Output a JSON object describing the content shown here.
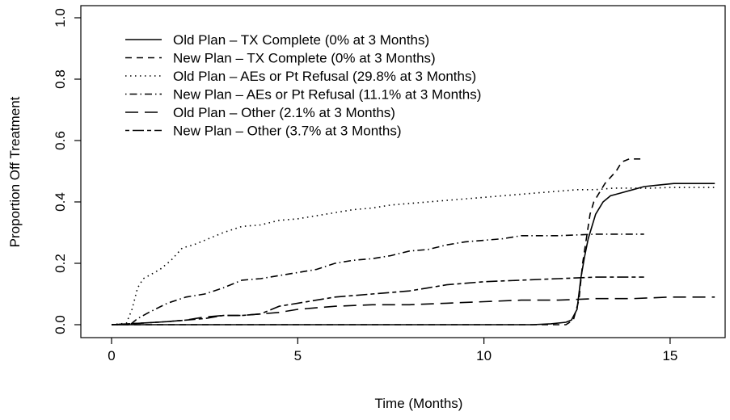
{
  "chart_data": {
    "type": "line",
    "title": "",
    "xlabel": "Time (Months)",
    "ylabel": "Proportion Off Treatment",
    "xlim": [
      0,
      16.2
    ],
    "ylim": [
      0,
      1.0
    ],
    "xticks": [
      0,
      5,
      10,
      15
    ],
    "xtick_labels": [
      "0",
      "5",
      "10",
      "15"
    ],
    "yticks": [
      0.0,
      0.2,
      0.4,
      0.6,
      0.8,
      1.0
    ],
    "ytick_labels": [
      "0.0",
      "0.2",
      "0.4",
      "0.6",
      "0.8",
      "1.0"
    ],
    "grid": false,
    "legend_position": "top-left",
    "series": [
      {
        "name": "Old Plan – TX Complete (0% at 3 Months)",
        "line_style": "solid",
        "color": "#000000",
        "x": [
          0,
          11.3,
          11.8,
          12.2,
          12.35,
          12.5,
          12.6,
          12.7,
          12.8,
          12.9,
          13.0,
          13.2,
          13.4,
          13.7,
          14.0,
          14.3,
          14.7,
          15.1,
          15.5,
          16.2
        ],
        "y": [
          0,
          0,
          0.003,
          0.008,
          0.015,
          0.05,
          0.15,
          0.22,
          0.28,
          0.32,
          0.36,
          0.4,
          0.42,
          0.43,
          0.44,
          0.45,
          0.455,
          0.46,
          0.46,
          0.46
        ]
      },
      {
        "name": "New Plan – TX Complete (0% at 3 Months)",
        "line_style": "dashed",
        "color": "#000000",
        "x": [
          0,
          12.2,
          12.4,
          12.55,
          12.65,
          12.75,
          12.85,
          12.95,
          13.1,
          13.25,
          13.4,
          13.55,
          13.7,
          13.9,
          14.2
        ],
        "y": [
          0,
          0,
          0.015,
          0.08,
          0.2,
          0.28,
          0.36,
          0.4,
          0.43,
          0.46,
          0.48,
          0.5,
          0.53,
          0.54,
          0.54
        ]
      },
      {
        "name": "Old Plan – AEs or Pt Refusal (29.8% at 3 Months)",
        "line_style": "dotted",
        "color": "#000000",
        "x": [
          0,
          0.4,
          0.55,
          0.7,
          0.85,
          1.0,
          1.3,
          1.6,
          1.9,
          2.2,
          2.6,
          3.0,
          3.5,
          4.0,
          4.5,
          5.0,
          5.5,
          6.0,
          6.5,
          7.0,
          7.5,
          8.0,
          8.5,
          9.0,
          9.5,
          10.0,
          10.5,
          11.0,
          11.5,
          12.0,
          12.5,
          13.0,
          13.5,
          14.0,
          14.5,
          15.0,
          15.5,
          16.2
        ],
        "y": [
          0,
          0.005,
          0.05,
          0.12,
          0.15,
          0.16,
          0.18,
          0.21,
          0.25,
          0.26,
          0.28,
          0.3,
          0.32,
          0.325,
          0.34,
          0.345,
          0.355,
          0.365,
          0.375,
          0.38,
          0.39,
          0.395,
          0.4,
          0.405,
          0.41,
          0.415,
          0.42,
          0.425,
          0.43,
          0.435,
          0.44,
          0.44,
          0.445,
          0.445,
          0.445,
          0.447,
          0.447,
          0.447
        ]
      },
      {
        "name": "New Plan – AEs or Pt Refusal (11.1% at 3 Months)",
        "line_style": "dotdash",
        "color": "#000000",
        "x": [
          0,
          0.5,
          0.7,
          1.0,
          1.5,
          2.0,
          2.5,
          3.0,
          3.5,
          4.0,
          4.5,
          5.0,
          5.5,
          6.0,
          6.5,
          7.0,
          7.5,
          8.0,
          8.5,
          9.0,
          9.5,
          10.0,
          10.5,
          11.0,
          12.0,
          13.0,
          13.5,
          14.3
        ],
        "y": [
          0,
          0,
          0.02,
          0.04,
          0.07,
          0.09,
          0.1,
          0.12,
          0.145,
          0.15,
          0.16,
          0.17,
          0.18,
          0.2,
          0.21,
          0.215,
          0.225,
          0.24,
          0.245,
          0.26,
          0.27,
          0.275,
          0.28,
          0.29,
          0.29,
          0.295,
          0.295,
          0.295
        ]
      },
      {
        "name": "Old Plan – Other (2.1% at 3 Months)",
        "line_style": "longdash",
        "color": "#000000",
        "x": [
          0,
          0.8,
          1.5,
          2.0,
          2.5,
          3.0,
          3.5,
          4.0,
          4.5,
          5.0,
          5.5,
          6.0,
          7.0,
          8.0,
          9.0,
          10.0,
          11.0,
          12.0,
          13.0,
          14.0,
          15.0,
          16.2
        ],
        "y": [
          0,
          0.005,
          0.01,
          0.015,
          0.025,
          0.03,
          0.03,
          0.035,
          0.04,
          0.05,
          0.055,
          0.06,
          0.065,
          0.065,
          0.07,
          0.075,
          0.08,
          0.08,
          0.085,
          0.085,
          0.09,
          0.09
        ]
      },
      {
        "name": "New Plan – Other (3.7% at 3 Months)",
        "line_style": "twodash",
        "color": "#000000",
        "x": [
          0,
          0.8,
          1.5,
          2.0,
          2.5,
          3.0,
          3.5,
          4.0,
          4.5,
          5.0,
          5.5,
          6.0,
          6.5,
          7.0,
          7.5,
          8.0,
          8.5,
          9.0,
          9.5,
          10.0,
          11.0,
          12.0,
          13.0,
          14.3
        ],
        "y": [
          0,
          0.005,
          0.01,
          0.015,
          0.02,
          0.03,
          0.03,
          0.035,
          0.06,
          0.07,
          0.08,
          0.09,
          0.095,
          0.1,
          0.105,
          0.11,
          0.12,
          0.13,
          0.135,
          0.14,
          0.145,
          0.15,
          0.155,
          0.155
        ]
      }
    ]
  }
}
